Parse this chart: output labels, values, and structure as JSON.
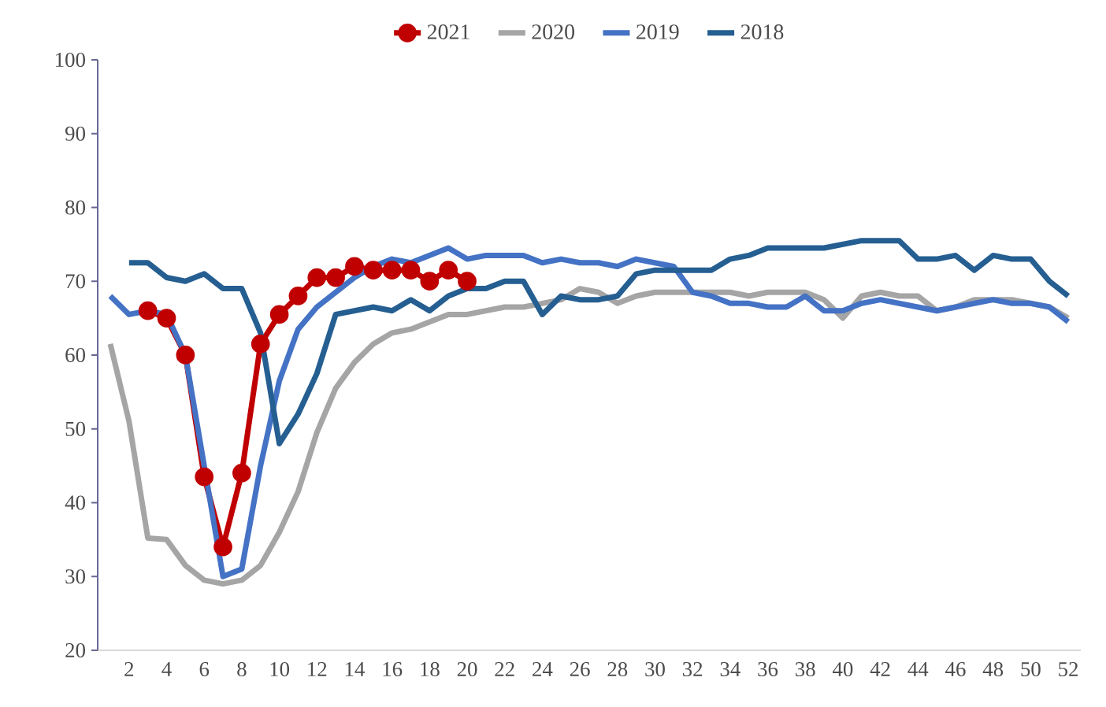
{
  "chart_data": {
    "type": "line",
    "categories": [
      null,
      "2",
      null,
      "4",
      null,
      "6",
      null,
      "8",
      null,
      "10",
      null,
      "12",
      null,
      "14",
      null,
      "16",
      null,
      "18",
      null,
      "20",
      null,
      "22",
      null,
      "24",
      null,
      "26",
      null,
      "28",
      null,
      "30",
      null,
      "32",
      null,
      "34",
      null,
      "36",
      null,
      "38",
      null,
      "40",
      null,
      "42",
      null,
      "44",
      null,
      "46",
      null,
      "48",
      null,
      "50",
      null,
      "52"
    ],
    "ylim": [
      20,
      100
    ],
    "yticks": [
      20,
      30,
      40,
      50,
      60,
      70,
      80,
      90,
      100
    ],
    "grid": false,
    "legend": "top",
    "series": [
      {
        "name": "2021",
        "color": "#c00000",
        "marker": "circle",
        "values": [
          null,
          null,
          66,
          65,
          60,
          43.5,
          34,
          44,
          61.5,
          65.5,
          68,
          70.5,
          70.5,
          72,
          71.5,
          71.5,
          71.5,
          70,
          71.5,
          70,
          null,
          null,
          null,
          null,
          null,
          null,
          null,
          null,
          null,
          null,
          null,
          null,
          null,
          null,
          null,
          null,
          null,
          null,
          null,
          null,
          null,
          null,
          null,
          null,
          null,
          null,
          null,
          null,
          null,
          null,
          null,
          null
        ]
      },
      {
        "name": "2020",
        "color": "#a5a5a5",
        "values": [
          61.5,
          51,
          35.2,
          35,
          31.5,
          29.5,
          29,
          29.5,
          31.5,
          36,
          41.5,
          49.5,
          55.5,
          59,
          61.5,
          63,
          63.5,
          64.5,
          65.5,
          65.5,
          66,
          66.5,
          66.5,
          67,
          67.5,
          69,
          68.5,
          67,
          68,
          68.5,
          68.5,
          68.5,
          68.5,
          68.5,
          68,
          68.5,
          68.5,
          68.5,
          67.5,
          65,
          68,
          68.5,
          68,
          68,
          66,
          66.5,
          67.5,
          67.5,
          67.5,
          67,
          66.5,
          65
        ]
      },
      {
        "name": "2019",
        "color": "#4472c4",
        "values": [
          68,
          65.5,
          66,
          65.5,
          60,
          45,
          30,
          31,
          45,
          56.5,
          63.5,
          66.5,
          68.5,
          70.5,
          72,
          73,
          72.5,
          73.5,
          74.5,
          73,
          73.5,
          73.5,
          73.5,
          72.5,
          73,
          72.5,
          72.5,
          72,
          73,
          72.5,
          72,
          68.5,
          68,
          67,
          67,
          66.5,
          66.5,
          68,
          66,
          66,
          67,
          67.5,
          67,
          66.5,
          66,
          66.5,
          67,
          67.5,
          67,
          67,
          66.5,
          64.5
        ]
      },
      {
        "name": "2018",
        "color": "#255e91",
        "values": [
          null,
          72.5,
          72.5,
          70.5,
          70,
          71,
          69,
          69,
          63,
          48,
          52,
          57.5,
          65.5,
          66,
          66.5,
          66,
          67.5,
          66,
          68,
          69,
          69,
          70,
          70,
          65.5,
          68,
          67.5,
          67.5,
          68,
          71,
          71.5,
          71.5,
          71.5,
          71.5,
          73,
          73.5,
          74.5,
          74.5,
          74.5,
          74.5,
          75,
          75.5,
          75.5,
          75.5,
          73,
          73,
          73.5,
          71.5,
          73.5,
          73,
          73,
          70,
          68
        ]
      }
    ]
  }
}
